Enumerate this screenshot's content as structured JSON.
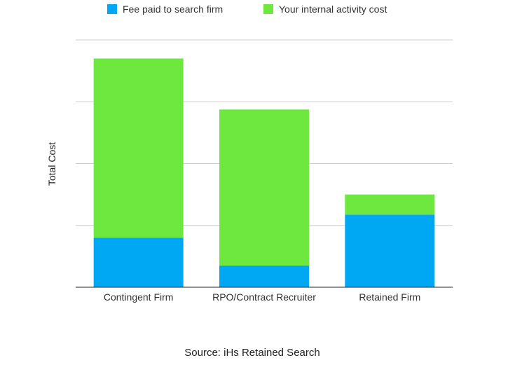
{
  "chart_data": {
    "type": "bar",
    "stacked": true,
    "categories": [
      "Contingent Firm",
      "RPO/Contract Recruiter",
      "Retained Firm"
    ],
    "series": [
      {
        "name": "Fee paid to search firm",
        "color": "#00a8f3",
        "values": [
          1.6,
          0.7,
          2.35
        ]
      },
      {
        "name": "Your internal activity cost",
        "color": "#6ee83f",
        "values": [
          5.8,
          5.05,
          0.65
        ]
      }
    ],
    "ylabel": "Total Cost",
    "ylim": [
      0,
      8
    ],
    "yticks_shown": false,
    "grid": true,
    "legend_position": "top",
    "source": "Source: iHs Retained Search"
  }
}
